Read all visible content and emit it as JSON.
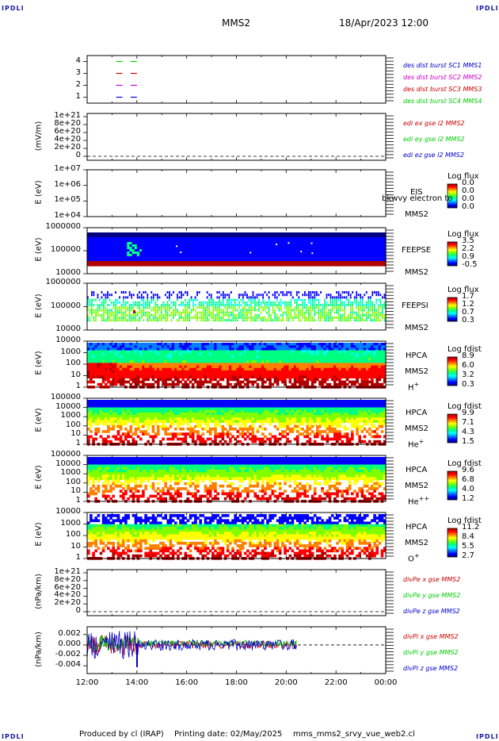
{
  "header": {
    "corner_mark": "IPDLI",
    "spacecraft": "MMS2",
    "datetime": "18/Apr/2023 12:00"
  },
  "footer": {
    "produced_by": "Produced by cl (IRAP)",
    "printing_date": "Printing date: 02/May/2025",
    "file": "mms_mms2_srvy_vue_web2.cl"
  },
  "colors": {
    "red": "#cc0000",
    "green": "#00cc00",
    "blue": "#0000cc",
    "magenta": "#cc00cc",
    "spectrogram_scale": [
      "#000080",
      "#0000ff",
      "#0080ff",
      "#00ffff",
      "#00ff80",
      "#80ff00",
      "#ffff00",
      "#ff8000",
      "#ff0000",
      "#b00000"
    ]
  },
  "chart_data": {
    "type": "multi-panel time series and spectrograms",
    "x_axis": {
      "ticks": [
        "12:00",
        "14:00",
        "16:00",
        "18:00",
        "20:00",
        "22:00",
        "00:00"
      ],
      "range": [
        "12:00",
        "00:00"
      ]
    },
    "panels": [
      {
        "id": "burst",
        "yticks": [
          "4",
          "3",
          "2",
          "1"
        ],
        "ylim": [
          0.5,
          4.5
        ],
        "legend": [
          {
            "text": "des dist burst SC1 MMS1",
            "color": "#0000cc"
          },
          {
            "text": "des dist burst SC2 MMS2",
            "color": "#cc00cc"
          },
          {
            "text": "des dist burst SC3 MMS3",
            "color": "#cc0000"
          },
          {
            "text": "des dist burst SC4 MMS4",
            "color": "#00cc00"
          }
        ],
        "segments": [
          {
            "level": 4,
            "color": "#00cc00",
            "start": "13:10",
            "end": "13:25"
          },
          {
            "level": 4,
            "color": "#00cc00",
            "start": "13:45",
            "end": "14:00"
          },
          {
            "level": 3,
            "color": "#cc0000",
            "start": "13:10",
            "end": "13:25"
          },
          {
            "level": 3,
            "color": "#cc0000",
            "start": "13:45",
            "end": "14:00"
          },
          {
            "level": 2,
            "color": "#cc00cc",
            "start": "13:10",
            "end": "13:25"
          },
          {
            "level": 2,
            "color": "#cc00cc",
            "start": "13:45",
            "end": "14:00"
          },
          {
            "level": 1,
            "color": "#0000cc",
            "start": "13:10",
            "end": "13:25"
          },
          {
            "level": 1,
            "color": "#0000cc",
            "start": "13:45",
            "end": "14:00"
          }
        ]
      },
      {
        "id": "edi",
        "ylabel": "(mV/m)",
        "yticks": [
          "1e+21",
          "8e+20",
          "6e+20",
          "4e+20",
          "2e+20",
          "0"
        ],
        "ylim": [
          0,
          1e+21
        ],
        "legend": [
          {
            "text": "edi ex gse l2 MMS2",
            "color": "#cc0000"
          },
          {
            "text": "edi ey gse l2 MMS2",
            "color": "#00cc00"
          },
          {
            "text": "edi ez gse l2 MMS2",
            "color": "#0000cc"
          }
        ],
        "dashed_zero": true
      },
      {
        "id": "eis",
        "ylabel": "E (eV)",
        "yticks": [
          "1e+07",
          "1e+06",
          "1e+05",
          "1e+04"
        ],
        "ylim": [
          10000.0,
          10000000.0
        ],
        "log": true,
        "instrument": [
          "EIS",
          "MMS2"
        ],
        "overlay_text": "bkwvy electron to",
        "colorbar": {
          "title": "Log flux",
          "ticks": [
            "0.0",
            "0.0",
            "0.0",
            "0.0"
          ]
        }
      },
      {
        "id": "feepse",
        "ylabel": "E (eV)",
        "yticks": [
          "1000000",
          "100000",
          "10000"
        ],
        "ylim": [
          10000.0,
          1000000.0
        ],
        "log": true,
        "instrument": [
          "FEEPSE",
          "MMS2"
        ],
        "colorbar": {
          "title": "Log flux",
          "ticks": [
            "3.5",
            "2.2",
            "0.9",
            "-0.5"
          ]
        }
      },
      {
        "id": "feepsi",
        "ylabel": "E (eV)",
        "yticks": [
          "1000000",
          "100000",
          "10000"
        ],
        "ylim": [
          10000.0,
          1000000.0
        ],
        "log": true,
        "instrument": [
          "FEEPSI",
          "MMS2"
        ],
        "colorbar": {
          "title": "Log flux",
          "ticks": [
            "1.7",
            "1.2",
            "0.7",
            "0.3"
          ]
        }
      },
      {
        "id": "hpca_h",
        "ylabel": "E (eV)",
        "yticks": [
          "10000",
          "1000",
          "100",
          "10",
          "1"
        ],
        "ylim": [
          1,
          30000.0
        ],
        "log": true,
        "instrument": [
          "HPCA",
          "MMS2",
          "H",
          "+"
        ],
        "colorbar": {
          "title": "Log fdist",
          "ticks": [
            "8.9",
            "6.0",
            "3.2",
            "0.3"
          ]
        }
      },
      {
        "id": "hpca_he",
        "ylabel": "E (eV)",
        "yticks": [
          "100000",
          "10000",
          "1000",
          "100",
          "10",
          "1"
        ],
        "ylim": [
          1,
          100000.0
        ],
        "log": true,
        "instrument": [
          "HPCA",
          "MMS2",
          "He",
          "+"
        ],
        "colorbar": {
          "title": "Log fdist",
          "ticks": [
            "9.9",
            "7.1",
            "4.3",
            "1.5"
          ]
        }
      },
      {
        "id": "hpca_hepp",
        "ylabel": "E (eV)",
        "yticks": [
          "100000",
          "10000",
          "1000",
          "100",
          "10",
          "1"
        ],
        "ylim": [
          1,
          100000.0
        ],
        "log": true,
        "instrument": [
          "HPCA",
          "MMS2",
          "He",
          "++"
        ],
        "colorbar": {
          "title": "Log fdist",
          "ticks": [
            "9.6",
            "6.8",
            "4.0",
            "1.2"
          ]
        }
      },
      {
        "id": "hpca_o",
        "ylabel": "E (eV)",
        "yticks": [
          "10000",
          "1000",
          "100",
          "10",
          "1"
        ],
        "ylim": [
          1,
          30000.0
        ],
        "log": true,
        "instrument": [
          "HPCA",
          "MMS2",
          "O",
          "+"
        ],
        "colorbar": {
          "title": "Log fdist",
          "ticks": [
            "11.2",
            "8.4",
            "5.5",
            "2.7"
          ]
        }
      },
      {
        "id": "divpe",
        "ylabel": "(nPa/km)",
        "yticks": [
          "1e+21",
          "8e+20",
          "6e+20",
          "4e+20",
          "2e+20",
          "0"
        ],
        "ylim": [
          0,
          1e+21
        ],
        "legend": [
          {
            "text": "divPe x gse MMS2",
            "color": "#cc0000"
          },
          {
            "text": "divPe y gse MMS2",
            "color": "#00cc00"
          },
          {
            "text": "divPe z gse MMS2",
            "color": "#0000cc"
          }
        ],
        "dashed_zero": true
      },
      {
        "id": "divpi",
        "ylabel": "(nPa/km)",
        "yticks": [
          "0.002",
          "0.000",
          "-0.002",
          "-0.004"
        ],
        "ylim": [
          -0.0055,
          0.0035
        ],
        "legend": [
          {
            "text": "divPi x gse MMS2",
            "color": "#cc0000"
          },
          {
            "text": "divPi y gse MMS2",
            "color": "#00cc00"
          },
          {
            "text": "divPi z gse MMS2",
            "color": "#0000cc"
          }
        ],
        "dashed_zero": true,
        "data_end": "20:25"
      }
    ]
  }
}
